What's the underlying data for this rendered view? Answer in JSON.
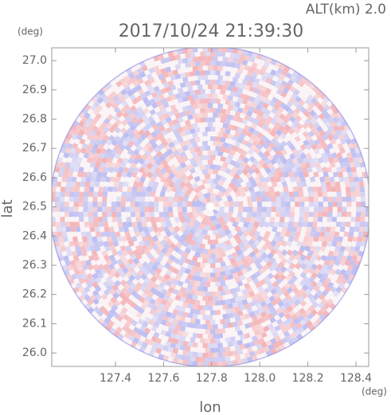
{
  "chart_data": {
    "type": "radar_ppi",
    "title": "2017/10/24 21:39:30",
    "subtitle": "ALT(km) 2.0",
    "x_label": "lon",
    "y_label": "lat",
    "x_unit": "(deg)",
    "y_unit": "(deg)",
    "xlim": [
      127.135,
      128.453
    ],
    "ylim": [
      25.954,
      27.044
    ],
    "xticks": [
      127.4,
      127.6,
      127.8,
      {
        "value": 128.0,
        "label": "128.0"
      },
      128.2,
      128.4
    ],
    "yticks": [
      {
        "value": 26.0,
        "label": "26.0"
      },
      26.1,
      26.2,
      26.3,
      26.4,
      26.5,
      26.6,
      26.7,
      26.8,
      26.9,
      {
        "value": 27.0,
        "label": "27.0"
      }
    ],
    "center": [
      127.794,
      26.5
    ]
  }
}
